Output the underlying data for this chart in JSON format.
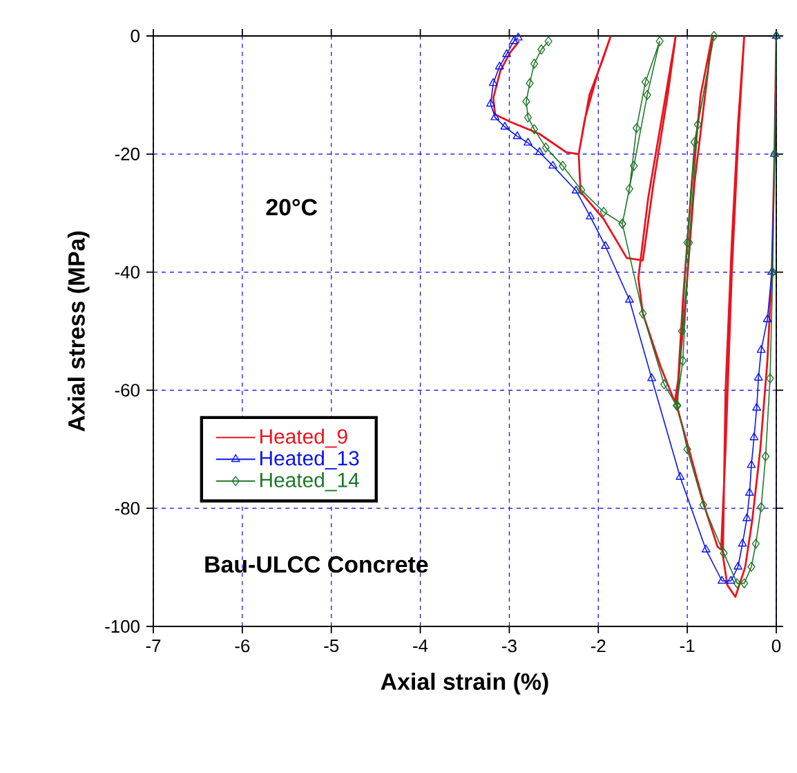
{
  "chart_data": {
    "type": "line",
    "xlabel": "Axial strain (%)",
    "ylabel": "Axial stress (MPa)",
    "xlim": [
      -7,
      0
    ],
    "ylim": [
      -100,
      0
    ],
    "xticks": [
      -7,
      -6,
      -5,
      -4,
      -3,
      -2,
      -1,
      0
    ],
    "yticks": [
      -100,
      -80,
      -60,
      -40,
      -20,
      0
    ],
    "grid": true,
    "legend": "left",
    "annotations": [
      "20°C",
      "Bau-ULCC Concrete"
    ],
    "series": [
      {
        "name": "Heated_9",
        "color": "#e8141e",
        "marker": "none",
        "x": [
          0,
          -0.02,
          -0.05,
          -0.1,
          -0.18,
          -0.27,
          -0.35,
          -0.46,
          -0.55,
          -0.6,
          -0.57,
          -0.5,
          -0.43,
          -0.36,
          -0.42,
          -0.5,
          -0.57,
          -0.62,
          -0.66,
          -0.8,
          -1.0,
          -1.12,
          -1.05,
          -0.95,
          -0.85,
          -0.72,
          -0.8,
          -0.92,
          -1.02,
          -1.1,
          -1.14,
          -1.3,
          -1.5,
          -1.55,
          -1.44,
          -1.26,
          -1.13,
          -1.22,
          -1.38,
          -1.5,
          -1.68,
          -1.94,
          -2.2,
          -2.22,
          -2.1,
          -1.95,
          -1.86,
          -2.0,
          -2.15,
          -2.22,
          -2.36,
          -2.66,
          -2.98,
          -3.16,
          -3.18,
          -3.1,
          -2.99,
          -2.89
        ],
        "values": [
          0,
          -20,
          -40,
          -55,
          -70,
          -82,
          -90,
          -95,
          -93,
          -88,
          -60,
          -35,
          -15,
          0,
          -15,
          -40,
          -70,
          -87,
          -86.5,
          -80,
          -69,
          -62.6,
          -45,
          -25,
          -10,
          0,
          -10,
          -25,
          -45,
          -58,
          -62,
          -56,
          -47,
          -41,
          -27.5,
          -11.6,
          0,
          -10,
          -25,
          -38,
          -37.6,
          -31,
          -26.4,
          -20,
          -10,
          -4,
          0,
          -6,
          -14,
          -20,
          -19.7,
          -16.6,
          -14.6,
          -13.3,
          -10.5,
          -5.9,
          -2.8,
          -0.9
        ]
      },
      {
        "name": "Heated_13",
        "color": "#0a14f0",
        "marker": "triangle",
        "x": [
          0,
          -0.02,
          -0.05,
          -0.1,
          -0.17,
          -0.2,
          -0.22,
          -0.25,
          -0.28,
          -0.3,
          -0.33,
          -0.38,
          -0.43,
          -0.51,
          -0.61,
          -0.79,
          -1.08,
          -1.4,
          -1.65,
          -1.92,
          -2.09,
          -2.25,
          -2.51,
          -2.66,
          -2.79,
          -2.91,
          -3.05,
          -3.16,
          -3.21,
          -3.18,
          -3.11,
          -3.03,
          -2.95,
          -2.9
        ],
        "values": [
          0,
          -20,
          -40,
          -48,
          -53.2,
          -57.9,
          -63,
          -68,
          -72.7,
          -77.4,
          -81.7,
          -86,
          -89.9,
          -92.3,
          -92.3,
          -87,
          -74.7,
          -58,
          -44.7,
          -35.6,
          -30.6,
          -26.2,
          -22,
          -19.7,
          -18.1,
          -17,
          -15.4,
          -13.8,
          -11.5,
          -8,
          -5.2,
          -3.1,
          -0.9,
          -0.3
        ]
      },
      {
        "name": "Heated_14",
        "color": "#1e7828",
        "marker": "diamond",
        "x": [
          0,
          -0.02,
          -0.04,
          -0.07,
          -0.12,
          -0.17,
          -0.23,
          -0.28,
          -0.36,
          -0.44,
          -0.59,
          -0.82,
          -1.0,
          -1.11,
          -1.06,
          -1.0,
          -0.92,
          -0.7,
          -0.88,
          -0.98,
          -1.05,
          -1.12,
          -1.26,
          -1.5,
          -1.73,
          -1.65,
          -1.57,
          -1.47,
          -1.31,
          -1.45,
          -1.6,
          -1.73,
          -1.94,
          -2.19,
          -2.4,
          -2.59,
          -2.72,
          -2.79,
          -2.81,
          -2.77,
          -2.72,
          -2.64,
          -2.56
        ],
        "values": [
          0,
          -20,
          -40,
          -58,
          -71.2,
          -79.8,
          -86,
          -89.9,
          -92.7,
          -92.7,
          -87.6,
          -79.4,
          -70,
          -62.6,
          -50,
          -35,
          -18,
          0,
          -15,
          -35,
          -55,
          -62.6,
          -59,
          -47,
          -31.8,
          -25.9,
          -15.6,
          -7.8,
          -0.9,
          -10,
          -22,
          -31.8,
          -29.8,
          -26.1,
          -22,
          -18.9,
          -15.8,
          -13.8,
          -11.1,
          -8,
          -4.7,
          -2.3,
          -0.9
        ]
      }
    ]
  }
}
